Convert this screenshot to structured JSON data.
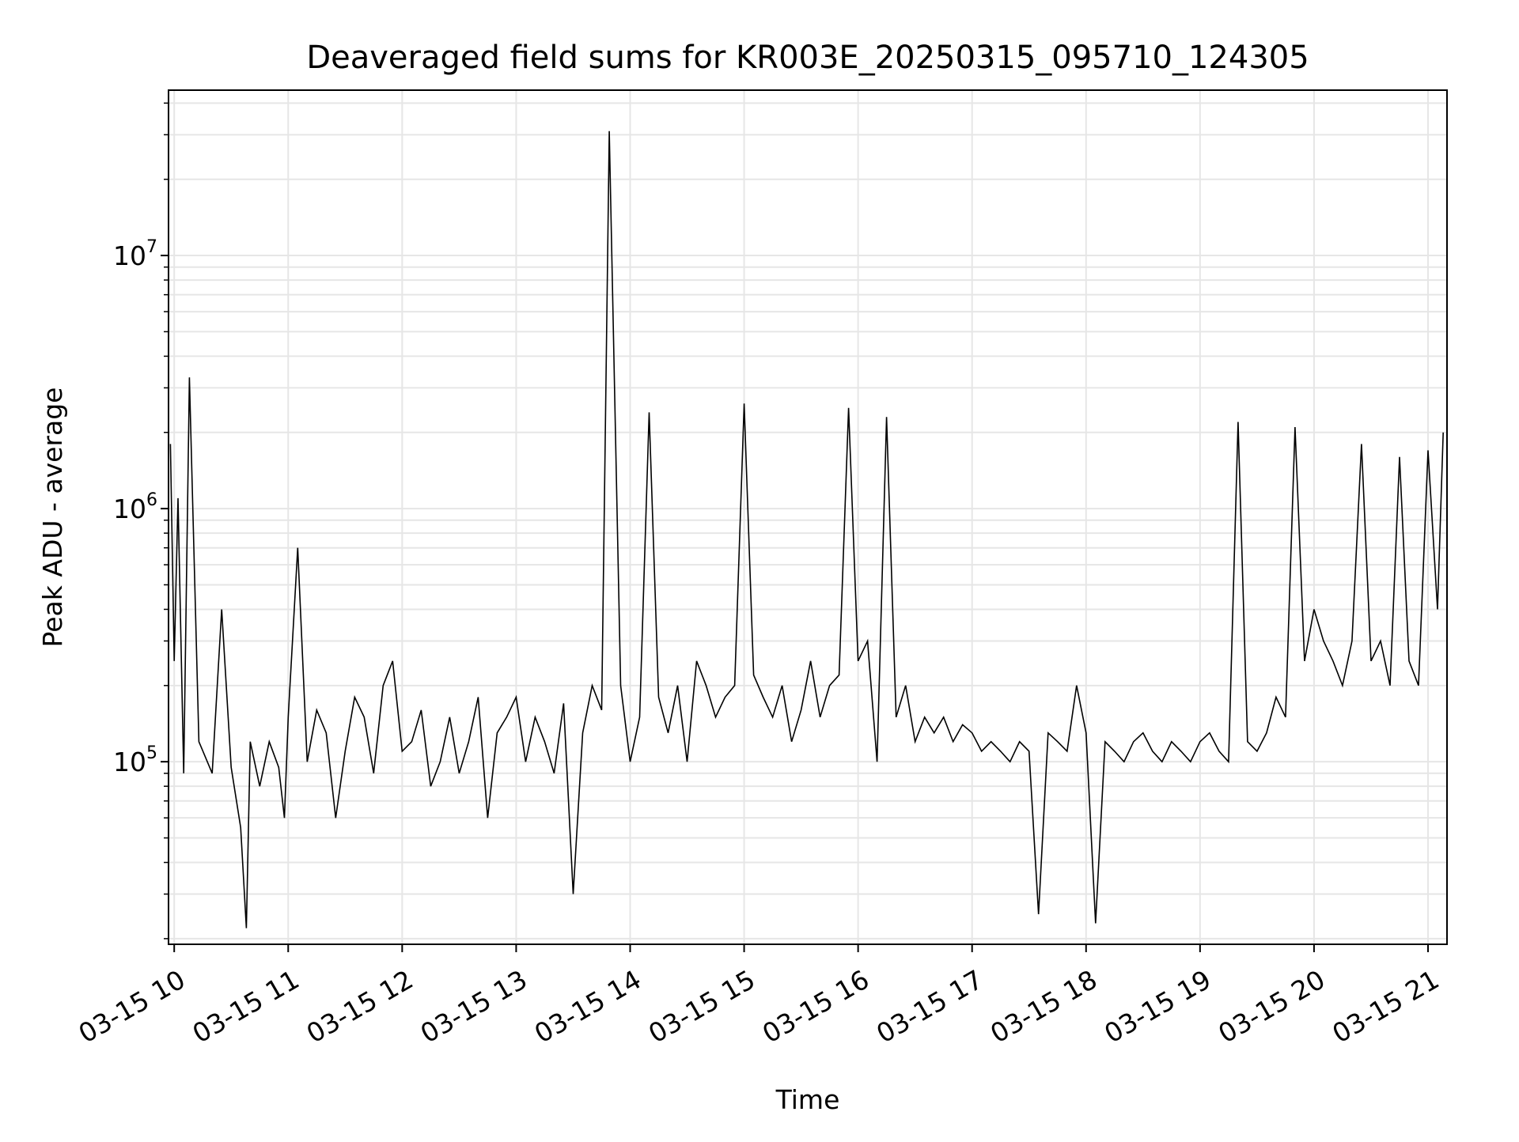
{
  "chart_data": {
    "type": "line",
    "title": "Deaveraged field sums for KR003E_20250315_095710_124305",
    "xlabel": "Time",
    "ylabel": "Peak ADU - average",
    "y_scale": "log",
    "ylim": [
      19000,
      45000000
    ],
    "xlim": [
      "2025-03-15 09:57",
      "2025-03-15 21:10"
    ],
    "x_ticks": [
      {
        "value": "2025-03-15 10:00",
        "label": "03-15 10"
      },
      {
        "value": "2025-03-15 11:00",
        "label": "03-15 11"
      },
      {
        "value": "2025-03-15 12:00",
        "label": "03-15 12"
      },
      {
        "value": "2025-03-15 13:00",
        "label": "03-15 13"
      },
      {
        "value": "2025-03-15 14:00",
        "label": "03-15 14"
      },
      {
        "value": "2025-03-15 15:00",
        "label": "03-15 15"
      },
      {
        "value": "2025-03-15 16:00",
        "label": "03-15 16"
      },
      {
        "value": "2025-03-15 17:00",
        "label": "03-15 17"
      },
      {
        "value": "2025-03-15 18:00",
        "label": "03-15 18"
      },
      {
        "value": "2025-03-15 19:00",
        "label": "03-15 19"
      },
      {
        "value": "2025-03-15 20:00",
        "label": "03-15 20"
      },
      {
        "value": "2025-03-15 21:00",
        "label": "03-15 21"
      }
    ],
    "y_ticks": [
      {
        "value": 100000,
        "base": "10",
        "exp": "5"
      },
      {
        "value": 1000000,
        "base": "10",
        "exp": "6"
      },
      {
        "value": 10000000,
        "base": "10",
        "exp": "7"
      }
    ],
    "grid": true,
    "line_color": "#000000",
    "grid_color": "#e6e6e6",
    "series": [
      {
        "x": [
          "2025-03-15 09:58",
          "2025-03-15 10:00",
          "2025-03-15 10:02",
          "2025-03-15 10:05",
          "2025-03-15 10:08",
          "2025-03-15 10:13",
          "2025-03-15 10:20",
          "2025-03-15 10:25",
          "2025-03-15 10:30",
          "2025-03-15 10:35",
          "2025-03-15 10:38",
          "2025-03-15 10:40",
          "2025-03-15 10:45",
          "2025-03-15 10:50",
          "2025-03-15 10:55",
          "2025-03-15 10:58",
          "2025-03-15 11:00",
          "2025-03-15 11:05",
          "2025-03-15 11:10",
          "2025-03-15 11:15",
          "2025-03-15 11:20",
          "2025-03-15 11:25",
          "2025-03-15 11:30",
          "2025-03-15 11:35",
          "2025-03-15 11:40",
          "2025-03-15 11:45",
          "2025-03-15 11:50",
          "2025-03-15 11:55",
          "2025-03-15 12:00",
          "2025-03-15 12:05",
          "2025-03-15 12:10",
          "2025-03-15 12:15",
          "2025-03-15 12:20",
          "2025-03-15 12:25",
          "2025-03-15 12:30",
          "2025-03-15 12:35",
          "2025-03-15 12:40",
          "2025-03-15 12:45",
          "2025-03-15 12:50",
          "2025-03-15 12:55",
          "2025-03-15 13:00",
          "2025-03-15 13:05",
          "2025-03-15 13:10",
          "2025-03-15 13:15",
          "2025-03-15 13:20",
          "2025-03-15 13:25",
          "2025-03-15 13:30",
          "2025-03-15 13:35",
          "2025-03-15 13:40",
          "2025-03-15 13:45",
          "2025-03-15 13:49",
          "2025-03-15 13:55",
          "2025-03-15 14:00",
          "2025-03-15 14:05",
          "2025-03-15 14:10",
          "2025-03-15 14:15",
          "2025-03-15 14:20",
          "2025-03-15 14:25",
          "2025-03-15 14:30",
          "2025-03-15 14:35",
          "2025-03-15 14:40",
          "2025-03-15 14:45",
          "2025-03-15 14:50",
          "2025-03-15 14:55",
          "2025-03-15 15:00",
          "2025-03-15 15:05",
          "2025-03-15 15:10",
          "2025-03-15 15:15",
          "2025-03-15 15:20",
          "2025-03-15 15:25",
          "2025-03-15 15:30",
          "2025-03-15 15:35",
          "2025-03-15 15:40",
          "2025-03-15 15:45",
          "2025-03-15 15:50",
          "2025-03-15 15:55",
          "2025-03-15 16:00",
          "2025-03-15 16:05",
          "2025-03-15 16:10",
          "2025-03-15 16:15",
          "2025-03-15 16:20",
          "2025-03-15 16:25",
          "2025-03-15 16:30",
          "2025-03-15 16:35",
          "2025-03-15 16:40",
          "2025-03-15 16:45",
          "2025-03-15 16:50",
          "2025-03-15 16:55",
          "2025-03-15 17:00",
          "2025-03-15 17:05",
          "2025-03-15 17:10",
          "2025-03-15 17:15",
          "2025-03-15 17:20",
          "2025-03-15 17:25",
          "2025-03-15 17:30",
          "2025-03-15 17:35",
          "2025-03-15 17:40",
          "2025-03-15 17:45",
          "2025-03-15 17:50",
          "2025-03-15 17:55",
          "2025-03-15 18:00",
          "2025-03-15 18:05",
          "2025-03-15 18:10",
          "2025-03-15 18:15",
          "2025-03-15 18:20",
          "2025-03-15 18:25",
          "2025-03-15 18:30",
          "2025-03-15 18:35",
          "2025-03-15 18:40",
          "2025-03-15 18:45",
          "2025-03-15 18:50",
          "2025-03-15 18:55",
          "2025-03-15 19:00",
          "2025-03-15 19:05",
          "2025-03-15 19:10",
          "2025-03-15 19:15",
          "2025-03-15 19:20",
          "2025-03-15 19:25",
          "2025-03-15 19:30",
          "2025-03-15 19:35",
          "2025-03-15 19:40",
          "2025-03-15 19:45",
          "2025-03-15 19:50",
          "2025-03-15 19:55",
          "2025-03-15 20:00",
          "2025-03-15 20:05",
          "2025-03-15 20:10",
          "2025-03-15 20:15",
          "2025-03-15 20:20",
          "2025-03-15 20:25",
          "2025-03-15 20:30",
          "2025-03-15 20:35",
          "2025-03-15 20:40",
          "2025-03-15 20:45",
          "2025-03-15 20:50",
          "2025-03-15 20:55",
          "2025-03-15 21:00",
          "2025-03-15 21:05",
          "2025-03-15 21:08"
        ],
        "y": [
          1800000,
          250000,
          1100000,
          90000,
          3300000,
          120000,
          90000,
          400000,
          95000,
          55000,
          22000,
          120000,
          80000,
          120000,
          95000,
          60000,
          150000,
          700000,
          100000,
          160000,
          130000,
          60000,
          110000,
          180000,
          150000,
          90000,
          200000,
          250000,
          110000,
          120000,
          160000,
          80000,
          100000,
          150000,
          90000,
          120000,
          180000,
          60000,
          130000,
          150000,
          180000,
          100000,
          150000,
          120000,
          90000,
          170000,
          30000,
          130000,
          200000,
          160000,
          31000000,
          200000,
          100000,
          150000,
          2400000,
          180000,
          130000,
          200000,
          100000,
          250000,
          200000,
          150000,
          180000,
          200000,
          2600000,
          220000,
          180000,
          150000,
          200000,
          120000,
          160000,
          250000,
          150000,
          200000,
          220000,
          2500000,
          250000,
          300000,
          100000,
          2300000,
          150000,
          200000,
          120000,
          150000,
          130000,
          150000,
          120000,
          140000,
          130000,
          110000,
          120000,
          110000,
          100000,
          120000,
          110000,
          25000,
          130000,
          120000,
          110000,
          200000,
          130000,
          23000,
          120000,
          110000,
          100000,
          120000,
          130000,
          110000,
          100000,
          120000,
          110000,
          100000,
          120000,
          130000,
          110000,
          100000,
          2200000,
          120000,
          110000,
          130000,
          180000,
          150000,
          2100000,
          250000,
          400000,
          300000,
          250000,
          200000,
          300000,
          1800000,
          250000,
          300000,
          200000,
          1600000,
          250000,
          200000,
          1700000,
          400000,
          2000000
        ]
      }
    ]
  }
}
